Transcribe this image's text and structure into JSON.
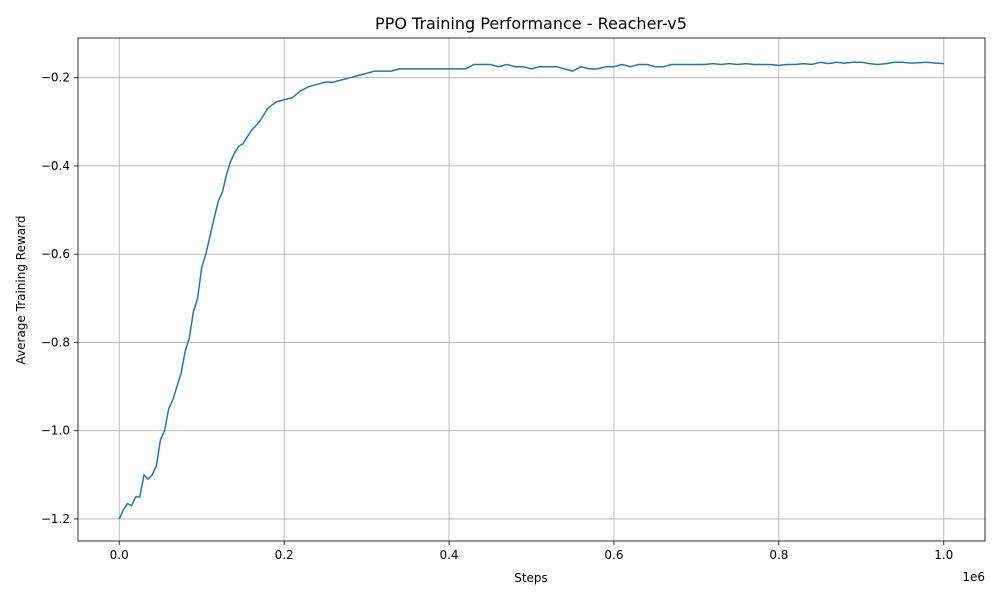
{
  "chart_data": {
    "type": "line",
    "title": "PPO Training Performance - Reacher-v5",
    "xlabel": "Steps",
    "ylabel": "Average Training Reward",
    "x_offset_label": "1e6",
    "xlim": [
      -50000,
      1050000
    ],
    "ylim": [
      -1.25,
      -0.11
    ],
    "x_ticks": [
      0,
      200000,
      400000,
      600000,
      800000,
      1000000
    ],
    "x_tick_labels": [
      "0.0",
      "0.2",
      "0.4",
      "0.6",
      "0.8",
      "1.0"
    ],
    "y_ticks": [
      -1.2,
      -1.0,
      -0.8,
      -0.6,
      -0.4,
      -0.2
    ],
    "y_tick_labels": [
      "−1.2",
      "−1.0",
      "−0.8",
      "−0.6",
      "−0.4",
      "−0.2"
    ],
    "grid": true,
    "series": [
      {
        "color": "#1f77b4",
        "x": [
          0,
          5000,
          10000,
          15000,
          20000,
          25000,
          30000,
          35000,
          40000,
          45000,
          50000,
          55000,
          60000,
          65000,
          70000,
          75000,
          80000,
          85000,
          90000,
          95000,
          100000,
          105000,
          110000,
          115000,
          120000,
          125000,
          130000,
          135000,
          140000,
          145000,
          150000,
          160000,
          170000,
          180000,
          190000,
          200000,
          210000,
          220000,
          230000,
          240000,
          250000,
          260000,
          270000,
          280000,
          290000,
          300000,
          310000,
          320000,
          330000,
          340000,
          350000,
          360000,
          370000,
          380000,
          390000,
          400000,
          410000,
          420000,
          430000,
          440000,
          450000,
          460000,
          470000,
          480000,
          490000,
          500000,
          510000,
          520000,
          530000,
          540000,
          550000,
          560000,
          570000,
          580000,
          590000,
          600000,
          610000,
          620000,
          630000,
          640000,
          650000,
          660000,
          670000,
          680000,
          690000,
          700000,
          710000,
          720000,
          730000,
          740000,
          750000,
          760000,
          770000,
          780000,
          790000,
          800000,
          810000,
          820000,
          830000,
          840000,
          850000,
          860000,
          870000,
          880000,
          890000,
          900000,
          910000,
          920000,
          930000,
          940000,
          950000,
          960000,
          970000,
          980000,
          990000,
          1000000
        ],
        "y": [
          -1.2,
          -1.18,
          -1.165,
          -1.17,
          -1.15,
          -1.15,
          -1.1,
          -1.11,
          -1.1,
          -1.08,
          -1.02,
          -1.0,
          -0.95,
          -0.93,
          -0.9,
          -0.87,
          -0.82,
          -0.79,
          -0.73,
          -0.7,
          -0.63,
          -0.6,
          -0.56,
          -0.52,
          -0.48,
          -0.46,
          -0.42,
          -0.39,
          -0.37,
          -0.355,
          -0.35,
          -0.32,
          -0.3,
          -0.27,
          -0.255,
          -0.25,
          -0.245,
          -0.23,
          -0.22,
          -0.215,
          -0.21,
          -0.21,
          -0.205,
          -0.2,
          -0.195,
          -0.19,
          -0.185,
          -0.185,
          -0.185,
          -0.18,
          -0.18,
          -0.18,
          -0.18,
          -0.18,
          -0.18,
          -0.18,
          -0.18,
          -0.18,
          -0.17,
          -0.17,
          -0.17,
          -0.175,
          -0.17,
          -0.175,
          -0.175,
          -0.18,
          -0.175,
          -0.175,
          -0.175,
          -0.18,
          -0.185,
          -0.175,
          -0.18,
          -0.18,
          -0.175,
          -0.175,
          -0.17,
          -0.175,
          -0.17,
          -0.17,
          -0.175,
          -0.175,
          -0.17,
          -0.17,
          -0.17,
          -0.17,
          -0.17,
          -0.168,
          -0.17,
          -0.168,
          -0.17,
          -0.168,
          -0.17,
          -0.17,
          -0.17,
          -0.172,
          -0.17,
          -0.17,
          -0.168,
          -0.17,
          -0.165,
          -0.168,
          -0.165,
          -0.167,
          -0.165,
          -0.165,
          -0.168,
          -0.17,
          -0.168,
          -0.165,
          -0.165,
          -0.167,
          -0.166,
          -0.165,
          -0.167,
          -0.168
        ]
      }
    ]
  }
}
